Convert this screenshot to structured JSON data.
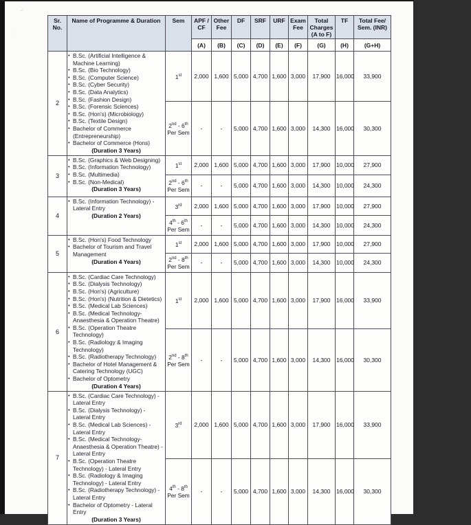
{
  "table": {
    "columns": [
      {
        "label": "Sr. No."
      },
      {
        "label": "Name of Programme & Duration"
      },
      {
        "label": "Sem"
      },
      {
        "label": "APF / CF",
        "code": "(A)"
      },
      {
        "label": "Other Fee",
        "code": "(B)"
      },
      {
        "label": "DF",
        "code": "(C)"
      },
      {
        "label": "SRF",
        "code": "(D)"
      },
      {
        "label": "URF",
        "code": "(E)"
      },
      {
        "label": "Exam Fee",
        "code": "(F)"
      },
      {
        "label": "Total Charges (A to F)",
        "code": "(G)"
      },
      {
        "label": "TF",
        "code": "(H)"
      },
      {
        "label": "Total Fee/ Sem. (INR)",
        "code": "(G+H)"
      }
    ],
    "rows": [
      {
        "sr": "2",
        "programmes": [
          "B.Sc. (Artificial Intelligence & Machine Learning)",
          "B.Sc. (Bio Technology)",
          "B.Sc. (Computer Science)",
          "B.Sc. (Cyber Security)",
          "B.Sc. (Data Analytics)",
          "B.Sc. (Fashion Design)",
          "B.Sc. (Forensic Sciences)",
          "B.Sc. (Hon's) (Microbiology)",
          "B.Sc. (Textile Design)",
          "Bachelor of Commerce (Entrepreneurship)",
          "Bachelor of Commerce (Hons)"
        ],
        "duration": "(Duration 3 Years)",
        "sem_rows": [
          {
            "sem": "1st",
            "values": [
              "2,000",
              "1,600",
              "5,000",
              "4,700",
              "1,600",
              "3,000",
              "17,900",
              "16,000",
              "33,900"
            ]
          },
          {
            "sem": "2nd - 6th\nPer Sem",
            "values": [
              "-",
              "-",
              "5,000",
              "4,700",
              "1,600",
              "3,000",
              "14,300",
              "16,000",
              "30,300"
            ]
          }
        ]
      },
      {
        "sr": "3",
        "programmes": [
          "B.Sc. (Graphics & Web Designing)",
          "B.Sc. (Information Technology)",
          "B.Sc. (Multimedia)",
          "B.Sc. (Non-Medical)"
        ],
        "duration": "(Duration 3 Years)",
        "sem_rows": [
          {
            "sem": "1st",
            "values": [
              "2,000",
              "1,600",
              "5,000",
              "4,700",
              "1,600",
              "3,000",
              "17,900",
              "10,000",
              "27,900"
            ]
          },
          {
            "sem": "2nd - 6th\nPer Sem",
            "values": [
              "-",
              "-",
              "5,000",
              "4,700",
              "1,600",
              "3,000",
              "14,300",
              "10,000",
              "24,300"
            ]
          }
        ]
      },
      {
        "sr": "4",
        "programmes": [
          "B.Sc. (Information Technology) - Lateral Entry"
        ],
        "duration": "(Duration 2 Years)",
        "sem_rows": [
          {
            "sem": "3rd",
            "values": [
              "2,000",
              "1,600",
              "5,000",
              "4,700",
              "1,600",
              "3,000",
              "17,900",
              "10,000",
              "27,900"
            ]
          },
          {
            "sem": "4th - 6th\nPer Sem",
            "values": [
              "-",
              "-",
              "5,000",
              "4,700",
              "1,600",
              "3,000",
              "14,300",
              "10,000",
              "24,300"
            ]
          }
        ]
      },
      {
        "sr": "5",
        "programmes": [
          "B.Sc. (Hon's) Food Technology",
          "Bachelor of Tourism and Travel Management"
        ],
        "duration": "(Duration 4 Years)",
        "sem_rows": [
          {
            "sem": "1st",
            "values": [
              "2,000",
              "1,600",
              "5,000",
              "4,700",
              "1,600",
              "3,000",
              "17,900",
              "10,000",
              "27,900"
            ]
          },
          {
            "sem": "2nd - 8th\nPer Sem",
            "values": [
              "-",
              "-",
              "5,000",
              "4,700",
              "1,600",
              "3,000",
              "14,300",
              "10,000",
              "24,300"
            ]
          }
        ]
      },
      {
        "sr": "6",
        "programmes": [
          "B.Sc. (Cardiac Care Technology)",
          "B.Sc. (Dialysis Technology)",
          "B.Sc. (Hon's) (Agriculture)",
          "B.Sc. (Hon's) (Nutrition & Dietetics)",
          "B.Sc. (Medical Lab Sciences)",
          "B.Sc. (Medical Technology- Anaesthesia & Operation Theatre)",
          "B.Sc. (Operation Theatre Technology)",
          "B.Sc. (Radiology & Imaging Technology)",
          "B.Sc. (Radiotherapy Technology)",
          "Bachelor of Hotel Management & Catering Technology (UGC)",
          "Bachelor of Optometry"
        ],
        "duration": "(Duration 4 Years)",
        "sem_rows": [
          {
            "sem": "1st",
            "values": [
              "2,000",
              "1,600",
              "5,000",
              "4,700",
              "1,600",
              "3,000",
              "17,900",
              "16,000",
              "33,900"
            ]
          },
          {
            "sem": "2nd - 8th\nPer Sem",
            "values": [
              "-",
              "-",
              "5,000",
              "4,700",
              "1,600",
              "3,000",
              "14,300",
              "16,000",
              "30,300"
            ]
          }
        ]
      },
      {
        "sr": "7",
        "programmes": [
          "B.Sc. (Cardiac Care Technology) - Lateral Entry",
          "B.Sc. (Dialysis Technology) - Lateral Entry",
          "B.Sc. (Medical Lab Sciences) - Lateral Entry",
          "B.Sc. (Medical Technology- Anaesthesia & Operation Theatre) - Lateral Entry",
          "B.Sc. (Operation Theatre Technology) - Lateral Entry",
          "B.Sc. (Radiology & Imaging Technology) - Lateral Entry",
          "B.Sc. (Radiotherapy Technology) - Lateral Entry",
          "Bachelor of Optometry - Lateral Entry"
        ],
        "duration": "(Duration 3 Years)",
        "sem_rows": [
          {
            "sem": "3rd",
            "values": [
              "2,000",
              "1,600",
              "5,000",
              "4,700",
              "1,600",
              "3,000",
              "17,900",
              "16,000",
              "33,900"
            ]
          },
          {
            "sem": "4th - 8th\nPer Sem",
            "values": [
              "-",
              "-",
              "5,000",
              "4,700",
              "1,600",
              "3,000",
              "14,300",
              "16,000",
              "30,300"
            ]
          }
        ]
      }
    ]
  },
  "decor": {
    "pencil_mark_1": "~",
    "pencil_mark_2": "· ."
  }
}
